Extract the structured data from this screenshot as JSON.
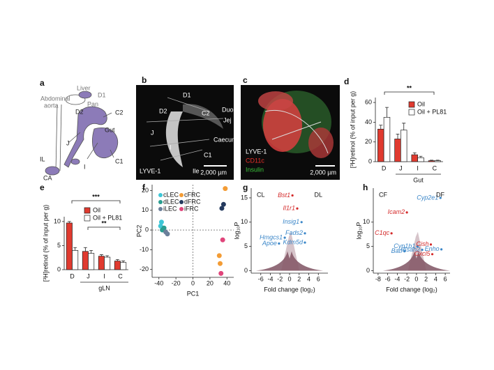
{
  "panel_a": {
    "letter": "a",
    "labels": [
      "Liver",
      "D1",
      "Abdominal",
      "aorta",
      "Pan",
      "D2",
      "C2",
      "Gut",
      "J",
      "IL",
      "I",
      "C1",
      "CA"
    ]
  },
  "panel_b": {
    "letter": "b",
    "labels": [
      "D1",
      "D2",
      "C2",
      "Duo",
      "Jej",
      "J",
      "Caecum",
      "I",
      "C1",
      "Ile"
    ],
    "stain": "LYVE-1",
    "scale_bar": "2,000 µm"
  },
  "panel_c": {
    "letter": "c",
    "stains": [
      {
        "name": "LYVE-1",
        "color": "#ffffff"
      },
      {
        "name": "CD11c",
        "color": "#e8302a"
      },
      {
        "name": "Insulin",
        "color": "#3cc43c"
      }
    ],
    "scale_bar": "2,000 µm"
  },
  "chart_data": [
    {
      "type": "bar",
      "letter": "d",
      "ylabel": "[³H]retinol (% of input per g)",
      "categories": [
        "D",
        "J",
        "I",
        "C"
      ],
      "group_label": "Gut",
      "series": [
        {
          "name": "Oil",
          "color": "#e03a2f",
          "values": [
            33,
            23,
            7,
            1
          ],
          "errors": [
            4,
            5,
            2,
            0.5
          ]
        },
        {
          "name": "Oil + PL81",
          "color": "#ffffff",
          "values": [
            45,
            32,
            4,
            1
          ],
          "errors": [
            10,
            7,
            1.5,
            0.5
          ]
        }
      ],
      "ylim": [
        0,
        65
      ],
      "yticks": [
        0,
        20,
        40,
        60
      ],
      "significance": [
        "**"
      ]
    },
    {
      "type": "bar",
      "letter": "e",
      "ylabel": "[³H]retinol (% of input per g)",
      "categories": [
        "D",
        "J",
        "I",
        "C"
      ],
      "group_label": "gLN",
      "series": [
        {
          "name": "Oil",
          "color": "#e03a2f",
          "values": [
            9.7,
            3.8,
            2.8,
            1.8
          ],
          "errors": [
            0.3,
            0.8,
            0.3,
            0.3
          ]
        },
        {
          "name": "Oil + PL81",
          "color": "#ffffff",
          "values": [
            4.0,
            3.4,
            2.6,
            1.5
          ],
          "errors": [
            0.6,
            0.6,
            0.3,
            0.3
          ]
        }
      ],
      "ylim": [
        0,
        11
      ],
      "yticks": [
        0,
        5,
        10
      ],
      "significance": [
        "***",
        "**"
      ]
    },
    {
      "type": "scatter",
      "letter": "f",
      "xlabel": "PC1",
      "ylabel": "PC2",
      "series": [
        {
          "name": "cLEC",
          "color": "#3ec6d6",
          "x": [
            -37,
            -38
          ],
          "values": [
            4,
            2
          ]
        },
        {
          "name": "dLEC",
          "color": "#2a9d8f",
          "x": [
            -36,
            -34
          ],
          "values": [
            0,
            1
          ]
        },
        {
          "name": "iLEC",
          "color": "#6b7f9a",
          "x": [
            -32,
            -30
          ],
          "values": [
            -1,
            -2
          ]
        },
        {
          "name": "cFRC",
          "color": "#f39c35",
          "x": [
            38,
            31,
            32
          ],
          "values": [
            21,
            -13,
            -17
          ]
        },
        {
          "name": "dFRC",
          "color": "#243a5e",
          "x": [
            34,
            36
          ],
          "values": [
            11,
            13
          ]
        },
        {
          "name": "iFRC",
          "color": "#e0457b",
          "x": [
            35,
            33
          ],
          "values": [
            -5,
            -22
          ]
        }
      ],
      "xlim": [
        -48,
        48
      ],
      "ylim": [
        -24,
        23
      ],
      "xticks": [
        -40,
        -20,
        0,
        20,
        40
      ],
      "yticks": [
        -20,
        -10,
        0,
        10,
        20
      ]
    },
    {
      "type": "volcano",
      "letter": "g",
      "xlabel": "Fold change (log₂)",
      "ylabel": "log₁₀P",
      "corner_labels": [
        "CL",
        "DL"
      ],
      "points": {
        "labels": [
          "Bst1",
          "Il1r1",
          "Insig1",
          "Fads2",
          "Kdm5d",
          "Hmgcs1",
          "Apoe"
        ],
        "x": [
          0.6,
          1.6,
          2.5,
          3.2,
          3.2,
          -1,
          -2.2
        ],
        "values": [
          15.5,
          12.8,
          10,
          7.7,
          5.8,
          6.8,
          5.6
        ],
        "colors": [
          "#d42a2a",
          "#d42a2a",
          "#3a86c8",
          "#3a86c8",
          "#3a86c8",
          "#3a86c8",
          "#3a86c8"
        ]
      },
      "xlim": [
        -8,
        8
      ],
      "ylim": [
        -0.5,
        17
      ],
      "xticks": [
        -6,
        -4,
        -2,
        0,
        2,
        4,
        6
      ],
      "yticks": [
        0,
        5,
        10,
        15
      ]
    },
    {
      "type": "volcano",
      "letter": "h",
      "xlabel": "Fold change (log₂)",
      "ylabel": "log₁₀P",
      "corner_labels": [
        "CF",
        "DF"
      ],
      "points": {
        "labels": [
          "Cyp2e1",
          "Icam2",
          "C1qc",
          "Cyp1b1",
          "Batf",
          "Asah2",
          "Cish",
          "Enho",
          "Cxcl5"
        ],
        "x": [
          5,
          -2,
          -5.2,
          0.2,
          -2.5,
          1.2,
          3,
          5.2,
          3.3
        ],
        "values": [
          15,
          12,
          7.7,
          5,
          4,
          4.3,
          5.4,
          4.4,
          3.4
        ],
        "colors": [
          "#3a86c8",
          "#d42a2a",
          "#d42a2a",
          "#3a86c8",
          "#3a86c8",
          "#3a86c8",
          "#d42a2a",
          "#3a86c8",
          "#d42a2a"
        ]
      },
      "xlim": [
        -9,
        7
      ],
      "ylim": [
        -0.5,
        17
      ],
      "xticks": [
        -8,
        -6,
        -4,
        -2,
        0,
        2,
        4,
        6
      ],
      "yticks": [
        0,
        5,
        10
      ]
    }
  ]
}
